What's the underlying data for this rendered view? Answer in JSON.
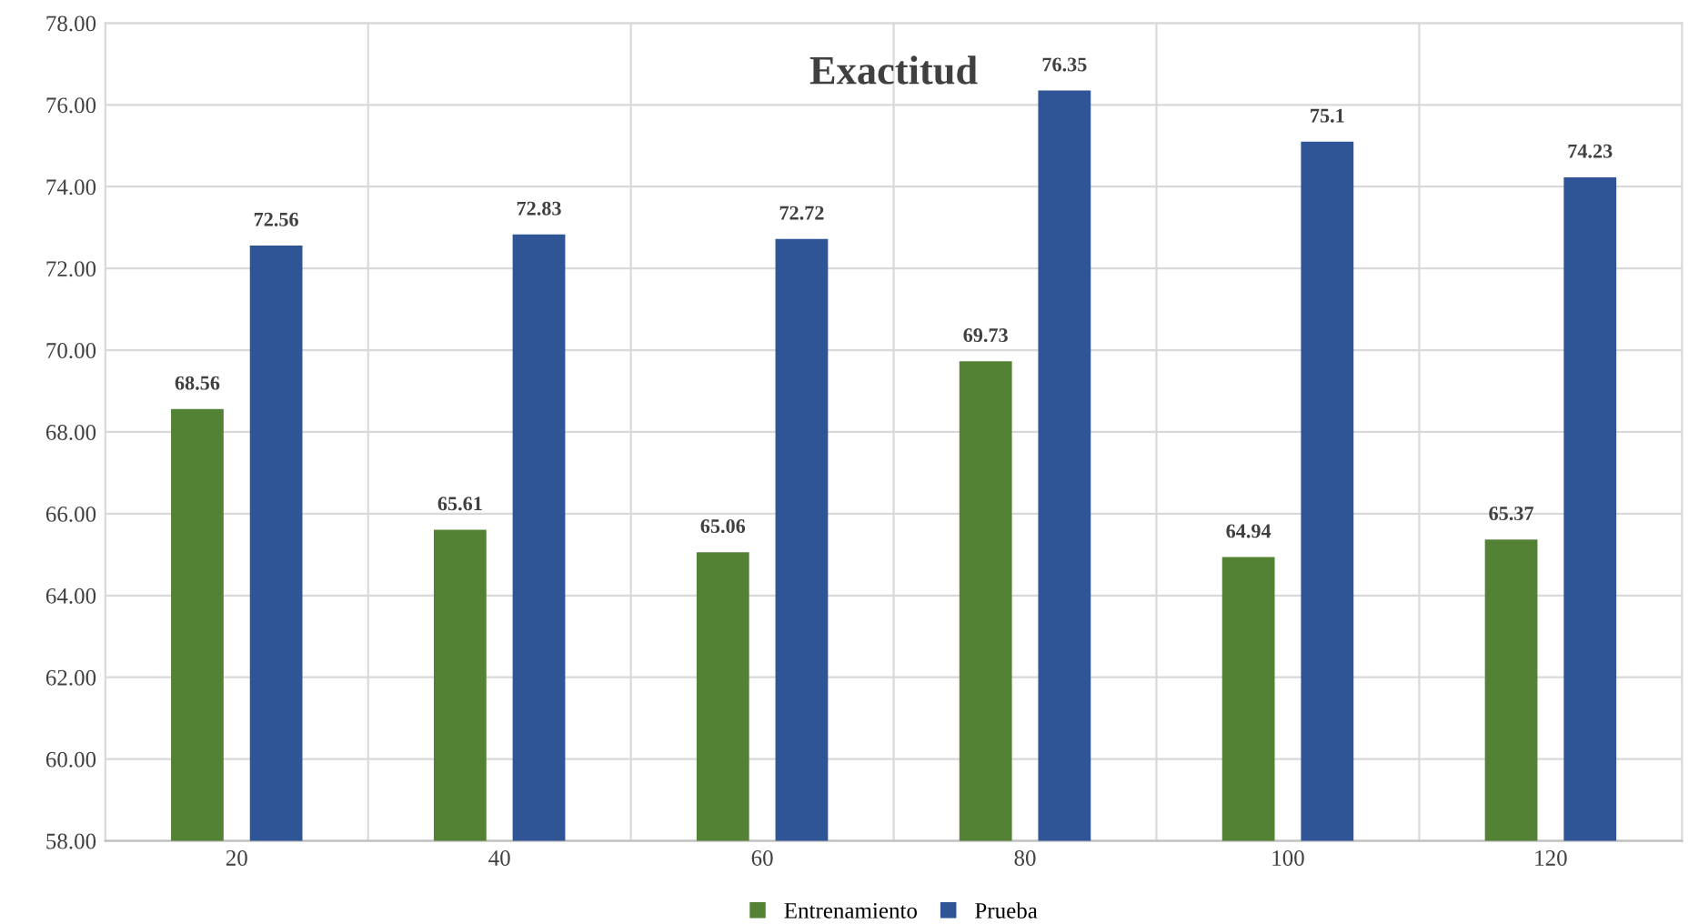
{
  "chart_data": {
    "type": "bar",
    "title": "Exactitud",
    "categories": [
      "20",
      "40",
      "60",
      "80",
      "100",
      "120"
    ],
    "series": [
      {
        "name": "Entrenamiento",
        "color": "#548235",
        "values": [
          68.56,
          65.61,
          65.06,
          69.73,
          64.94,
          65.37
        ]
      },
      {
        "name": "Prueba",
        "color": "#2f5597",
        "values": [
          72.56,
          72.83,
          72.72,
          76.35,
          75.1,
          74.23
        ]
      }
    ],
    "ylim": [
      58,
      78
    ],
    "yticks": [
      {
        "value": 58,
        "label": "58.00"
      },
      {
        "value": 60,
        "label": "60.00"
      },
      {
        "value": 62,
        "label": "62.00"
      },
      {
        "value": 64,
        "label": "64.00"
      },
      {
        "value": 66,
        "label": "66.00"
      },
      {
        "value": 68,
        "label": "68.00"
      },
      {
        "value": 70,
        "label": "70.00"
      },
      {
        "value": 72,
        "label": "72.00"
      },
      {
        "value": 74,
        "label": "74.00"
      },
      {
        "value": 76,
        "label": "76.00"
      },
      {
        "value": 78,
        "label": "78.00"
      }
    ],
    "grid": true,
    "legend": "bottom",
    "data_labels": true
  }
}
